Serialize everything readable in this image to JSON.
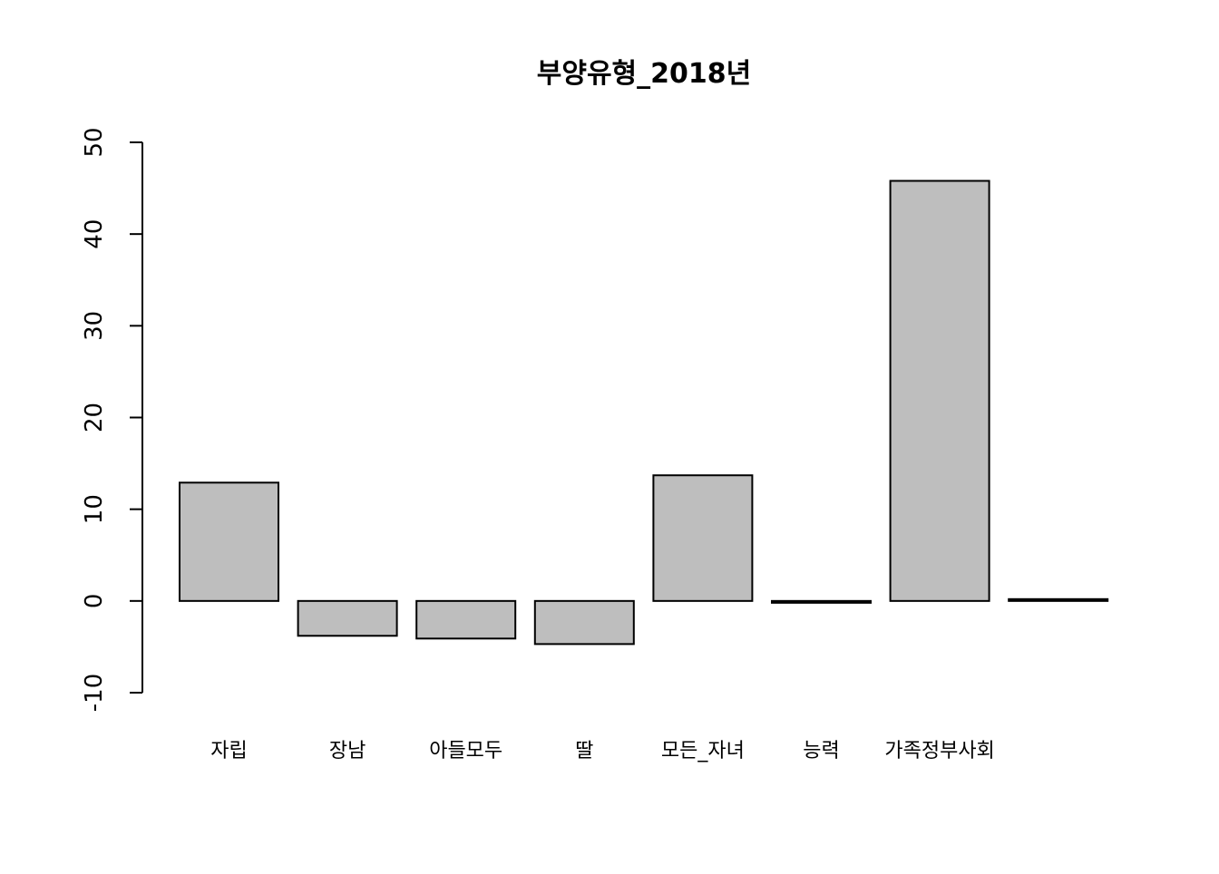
{
  "colors": {
    "bar_fill": "#BEBEBE",
    "bar_stroke": "#000000",
    "axis": "#000000",
    "background": "#FFFFFF"
  },
  "chart_data": {
    "type": "bar",
    "title": "부양유형_2018년",
    "xlabel": "",
    "ylabel": "",
    "grid": false,
    "legend": "none",
    "ylim": [
      -10,
      50
    ],
    "yticks": [
      -10,
      0,
      10,
      20,
      30,
      40,
      50
    ],
    "categories": [
      "자립",
      "장남",
      "아들모두",
      "딸",
      "모든_자녀",
      "능력",
      "가족정부사회",
      ""
    ],
    "category_labels_shown": [
      "자립",
      "장남",
      "아들모두",
      "딸",
      "모든_자녀",
      "능력",
      "가족정부사회"
    ],
    "values": [
      12.9,
      -3.8,
      -4.1,
      -4.7,
      13.7,
      -0.2,
      45.8,
      0.2
    ]
  }
}
